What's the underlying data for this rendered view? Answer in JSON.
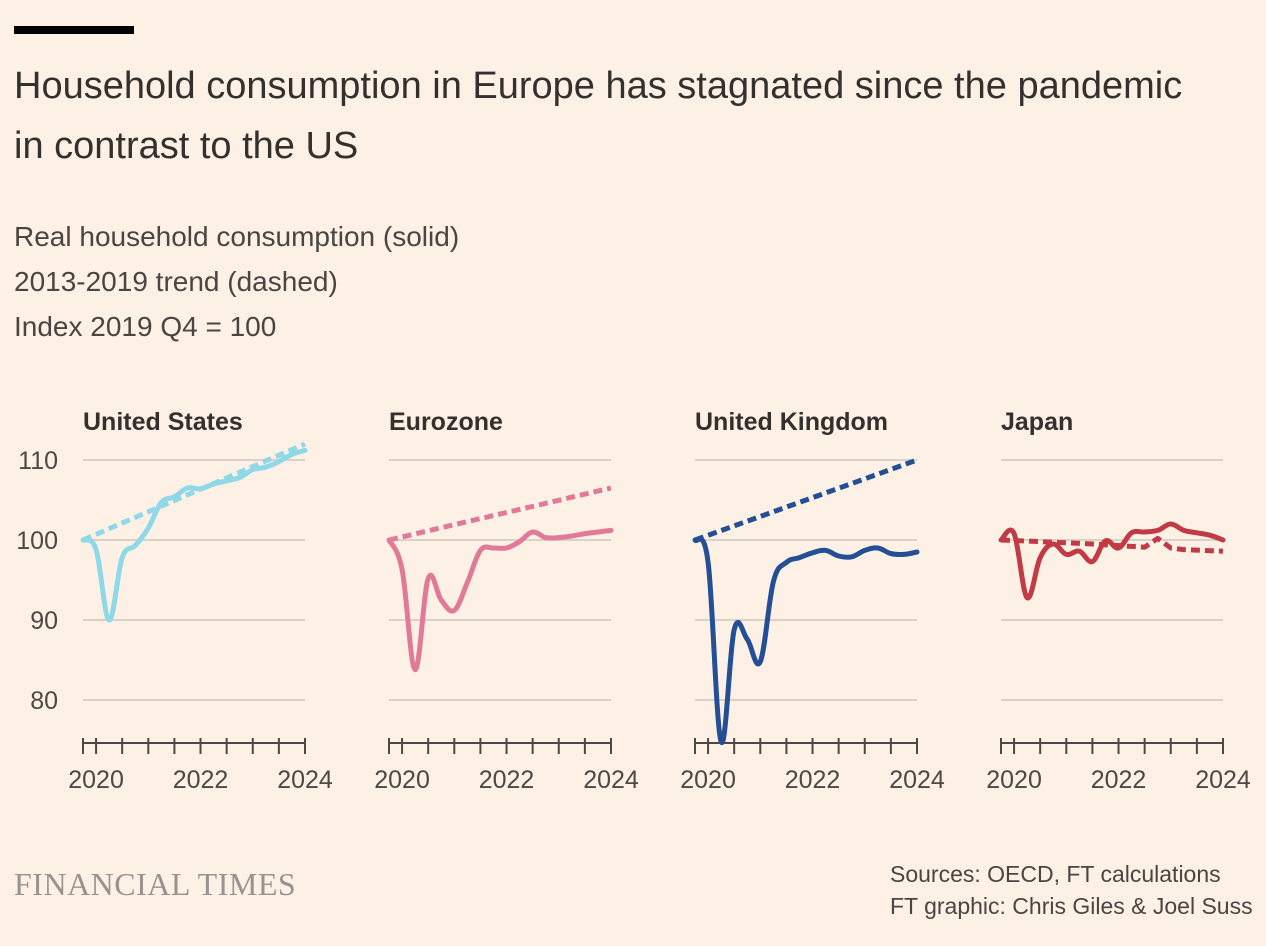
{
  "header": {
    "title": "Household consumption in Europe has stagnated since the pandemic in contrast to the US",
    "subtitle_lines": [
      "Real household consumption (solid)",
      "2013-2019 trend (dashed)",
      "Index 2019 Q4 = 100"
    ]
  },
  "footer": {
    "brand": "FINANCIAL TIMES",
    "source_line_1": "Sources: OECD, FT calculations",
    "source_line_2": "FT graphic: Chris Giles & Joel Suss"
  },
  "chart_data": [
    {
      "type": "line",
      "title": "United States",
      "color": "#8fd8e8",
      "xlim": [
        2019.75,
        2024.0
      ],
      "ylim": [
        75,
        110
      ],
      "yticks": [
        80,
        90,
        100,
        110
      ],
      "xticks": [
        2020,
        2022,
        2024
      ],
      "series": [
        {
          "style": "solid",
          "x": [
            2019.75,
            2020.0,
            2020.25,
            2020.5,
            2020.75,
            2021.0,
            2021.25,
            2021.5,
            2021.75,
            2022.0,
            2022.25,
            2022.5,
            2022.75,
            2023.0,
            2023.25,
            2023.5,
            2023.75,
            2024.0
          ],
          "y": [
            100,
            98.8,
            90,
            97.8,
            99.3,
            101.5,
            104.7,
            105.4,
            106.5,
            106.4,
            107.0,
            107.4,
            107.8,
            108.8,
            109.1,
            109.8,
            110.7,
            111.2
          ]
        },
        {
          "style": "dashed",
          "x": [
            2019.75,
            2024.0
          ],
          "y": [
            100,
            112
          ]
        }
      ]
    },
    {
      "type": "line",
      "title": "Eurozone",
      "color": "#e07a98",
      "xlim": [
        2019.75,
        2024.0
      ],
      "ylim": [
        75,
        110
      ],
      "yticks": [
        80,
        90,
        100,
        110
      ],
      "xticks": [
        2020,
        2022,
        2024
      ],
      "series": [
        {
          "style": "solid",
          "x": [
            2019.75,
            2020.0,
            2020.25,
            2020.5,
            2020.75,
            2021.0,
            2021.25,
            2021.5,
            2021.75,
            2022.0,
            2022.25,
            2022.5,
            2022.75,
            2023.0,
            2023.25,
            2023.5,
            2023.75,
            2024.0
          ],
          "y": [
            100,
            96.3,
            83.8,
            95.2,
            92.5,
            91.2,
            94.7,
            98.7,
            99.0,
            99.0,
            99.8,
            101.0,
            100.3,
            100.3,
            100.5,
            100.8,
            101.0,
            101.2
          ]
        },
        {
          "style": "dashed",
          "x": [
            2019.75,
            2024.0
          ],
          "y": [
            100,
            106.5
          ]
        }
      ]
    },
    {
      "type": "line",
      "title": "United Kingdom",
      "color": "#244e95",
      "xlim": [
        2019.75,
        2024.0
      ],
      "ylim": [
        75,
        110
      ],
      "yticks": [
        80,
        90,
        100,
        110
      ],
      "xticks": [
        2020,
        2022,
        2024
      ],
      "series": [
        {
          "style": "solid",
          "x": [
            2019.75,
            2020.0,
            2020.25,
            2020.5,
            2020.75,
            2021.0,
            2021.25,
            2021.5,
            2021.75,
            2022.0,
            2022.25,
            2022.5,
            2022.75,
            2023.0,
            2023.25,
            2023.5,
            2023.75,
            2024.0
          ],
          "y": [
            100,
            97.2,
            74.8,
            88.8,
            87.6,
            84.8,
            94.8,
            97.2,
            97.8,
            98.4,
            98.7,
            98.0,
            97.9,
            98.7,
            99.0,
            98.3,
            98.2,
            98.5
          ]
        },
        {
          "style": "dashed",
          "x": [
            2019.75,
            2024.0
          ],
          "y": [
            100,
            110
          ]
        }
      ]
    },
    {
      "type": "line",
      "title": "Japan",
      "color": "#c23a46",
      "xlim": [
        2019.75,
        2024.0
      ],
      "ylim": [
        75,
        110
      ],
      "yticks": [
        80,
        90,
        100,
        110
      ],
      "xticks": [
        2020,
        2022,
        2024
      ],
      "series": [
        {
          "style": "solid",
          "x": [
            2019.75,
            2020.0,
            2020.25,
            2020.5,
            2020.75,
            2021.0,
            2021.25,
            2021.5,
            2021.75,
            2022.0,
            2022.25,
            2022.5,
            2022.75,
            2023.0,
            2023.25,
            2023.5,
            2023.75,
            2024.0
          ],
          "y": [
            100,
            100.8,
            92.8,
            97.8,
            99.5,
            98.2,
            98.6,
            97.3,
            99.9,
            99.0,
            100.9,
            101.0,
            101.2,
            102.0,
            101.2,
            100.9,
            100.6,
            100.0
          ]
        },
        {
          "style": "dashed",
          "x": [
            2019.75,
            2020.5,
            2021.5,
            2022.5,
            2022.75,
            2023.0,
            2023.25,
            2024.0
          ],
          "y": [
            100,
            99.8,
            99.5,
            99.1,
            100.2,
            99.0,
            98.8,
            98.6
          ]
        }
      ]
    }
  ]
}
